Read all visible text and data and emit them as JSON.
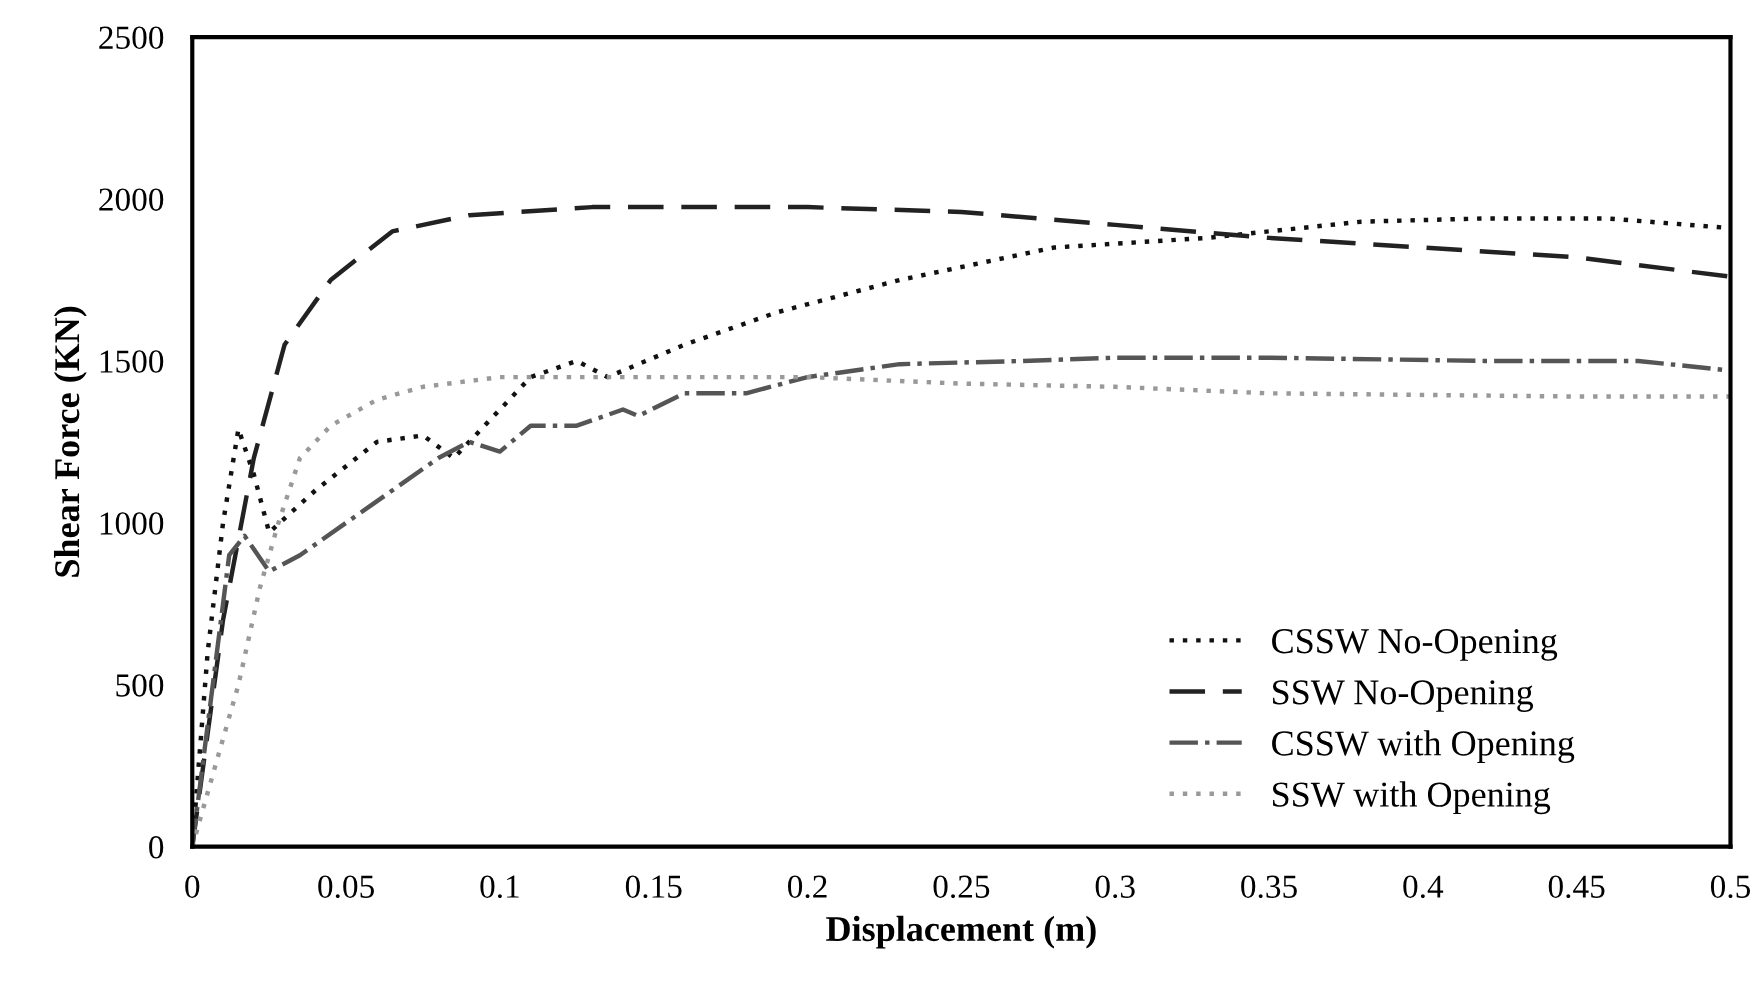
{
  "chart_data": {
    "type": "line",
    "xlabel": "Displacement (m)",
    "ylabel": "Shear Force (KN)",
    "xlim": [
      0,
      0.5
    ],
    "xticks": [
      0,
      0.05,
      0.1,
      0.15,
      0.2,
      0.25,
      0.3,
      0.35,
      0.4,
      0.45,
      0.5
    ],
    "ylim": [
      0,
      2500
    ],
    "yticks": [
      0,
      500,
      1000,
      1500,
      2000,
      2500
    ],
    "grid": false,
    "legend": "bottom right",
    "marker": "none",
    "series": [
      {
        "name": "CSSW No-Opening",
        "color": "#111111",
        "line_style": "dotted",
        "x": [
          0,
          0.005,
          0.01,
          0.015,
          0.02,
          0.025,
          0.04,
          0.06,
          0.075,
          0.085,
          0.1,
          0.11,
          0.125,
          0.135,
          0.16,
          0.19,
          0.23,
          0.28,
          0.33,
          0.38,
          0.42,
          0.46,
          0.5
        ],
        "values": [
          0,
          600,
          1000,
          1290,
          1150,
          970,
          1100,
          1250,
          1270,
          1200,
          1350,
          1450,
          1500,
          1450,
          1550,
          1650,
          1750,
          1850,
          1880,
          1930,
          1940,
          1940,
          1910
        ]
      },
      {
        "name": "SSW No-Opening",
        "color": "#222222",
        "line_style": "dashed",
        "x": [
          0,
          0.01,
          0.02,
          0.03,
          0.045,
          0.065,
          0.09,
          0.13,
          0.2,
          0.25,
          0.3,
          0.35,
          0.4,
          0.45,
          0.5
        ],
        "values": [
          0,
          700,
          1200,
          1550,
          1750,
          1900,
          1950,
          1975,
          1975,
          1960,
          1920,
          1880,
          1850,
          1820,
          1760
        ]
      },
      {
        "name": "CSSW with Opening",
        "color": "#555555",
        "line_style": "dashdot",
        "x": [
          0,
          0.012,
          0.017,
          0.025,
          0.035,
          0.05,
          0.065,
          0.08,
          0.09,
          0.1,
          0.11,
          0.125,
          0.14,
          0.145,
          0.16,
          0.18,
          0.2,
          0.23,
          0.27,
          0.3,
          0.35,
          0.42,
          0.47,
          0.5
        ],
        "values": [
          0,
          900,
          960,
          850,
          900,
          1000,
          1100,
          1200,
          1250,
          1220,
          1300,
          1300,
          1350,
          1330,
          1400,
          1400,
          1450,
          1490,
          1500,
          1510,
          1510,
          1500,
          1500,
          1470
        ]
      },
      {
        "name": "SSW with Opening",
        "color": "#999999",
        "line_style": "dotted",
        "x": [
          0,
          0.015,
          0.022,
          0.028,
          0.035,
          0.045,
          0.06,
          0.075,
          0.1,
          0.15,
          0.2,
          0.25,
          0.3,
          0.35,
          0.45,
          0.5
        ],
        "values": [
          0,
          500,
          800,
          1000,
          1200,
          1300,
          1380,
          1420,
          1450,
          1450,
          1450,
          1430,
          1420,
          1400,
          1390,
          1390
        ]
      }
    ]
  }
}
